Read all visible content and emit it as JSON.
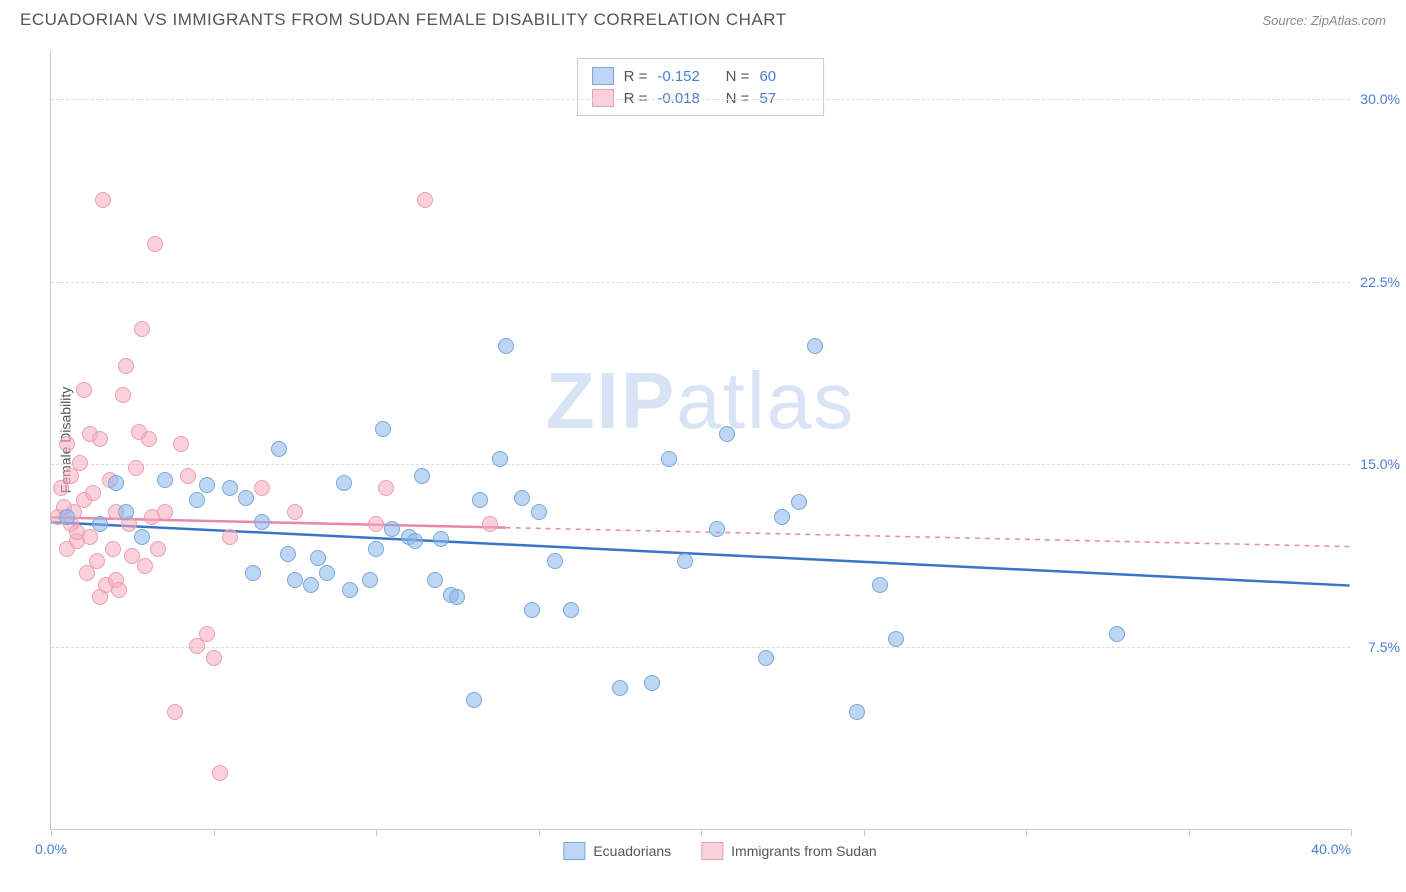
{
  "header": {
    "title": "ECUADORIAN VS IMMIGRANTS FROM SUDAN FEMALE DISABILITY CORRELATION CHART",
    "source": "Source: ZipAtlas.com"
  },
  "chart": {
    "type": "scatter",
    "ylabel": "Female Disability",
    "watermark_bold": "ZIP",
    "watermark_light": "atlas",
    "xlim": [
      0,
      40
    ],
    "ylim": [
      0,
      32
    ],
    "x_ticks": [
      0,
      5,
      10,
      15,
      20,
      25,
      30,
      35,
      40
    ],
    "x_tick_labels": {
      "0": "0.0%",
      "40": "40.0%"
    },
    "y_gridlines": [
      7.5,
      15.0,
      22.5,
      30.0
    ],
    "y_tick_labels": [
      "7.5%",
      "15.0%",
      "22.5%",
      "30.0%"
    ],
    "plot_bg": "#ffffff",
    "grid_color": "#dddddd",
    "axis_color": "#cccccc",
    "series": [
      {
        "name": "Ecuadorians",
        "fill": "rgba(135,180,235,0.55)",
        "stroke": "#7aa8d8",
        "line_color": "#3a73c8",
        "R": "-0.152",
        "N": "60",
        "trend": {
          "x1": 0,
          "y1": 12.6,
          "x2": 40,
          "y2": 10.0,
          "solid_until_x": 40
        },
        "points": [
          [
            0.5,
            12.8
          ],
          [
            1.5,
            12.5
          ],
          [
            2.0,
            14.2
          ],
          [
            2.3,
            13.0
          ],
          [
            2.8,
            12.0
          ],
          [
            3.5,
            14.3
          ],
          [
            4.5,
            13.5
          ],
          [
            4.8,
            14.1
          ],
          [
            5.5,
            14.0
          ],
          [
            6.0,
            13.6
          ],
          [
            6.2,
            10.5
          ],
          [
            6.5,
            12.6
          ],
          [
            7.0,
            15.6
          ],
          [
            7.3,
            11.3
          ],
          [
            7.5,
            10.2
          ],
          [
            8.0,
            10.0
          ],
          [
            8.2,
            11.1
          ],
          [
            8.5,
            10.5
          ],
          [
            9.0,
            14.2
          ],
          [
            9.2,
            9.8
          ],
          [
            9.8,
            10.2
          ],
          [
            10.0,
            11.5
          ],
          [
            10.2,
            16.4
          ],
          [
            10.5,
            12.3
          ],
          [
            11.0,
            12.0
          ],
          [
            11.2,
            11.8
          ],
          [
            11.4,
            14.5
          ],
          [
            11.8,
            10.2
          ],
          [
            12.0,
            11.9
          ],
          [
            12.3,
            9.6
          ],
          [
            12.5,
            9.5
          ],
          [
            13.0,
            5.3
          ],
          [
            13.2,
            13.5
          ],
          [
            13.8,
            15.2
          ],
          [
            14.0,
            19.8
          ],
          [
            14.5,
            13.6
          ],
          [
            14.8,
            9.0
          ],
          [
            15.0,
            13.0
          ],
          [
            15.5,
            11.0
          ],
          [
            16.0,
            9.0
          ],
          [
            17.5,
            5.8
          ],
          [
            18.5,
            6.0
          ],
          [
            19.0,
            15.2
          ],
          [
            19.5,
            11.0
          ],
          [
            20.5,
            12.3
          ],
          [
            20.8,
            16.2
          ],
          [
            22.0,
            7.0
          ],
          [
            22.5,
            12.8
          ],
          [
            23.0,
            13.4
          ],
          [
            23.5,
            19.8
          ],
          [
            24.8,
            4.8
          ],
          [
            25.5,
            10.0
          ],
          [
            26.0,
            7.8
          ],
          [
            32.8,
            8.0
          ]
        ]
      },
      {
        "name": "Immigrants from Sudan",
        "fill": "rgba(245,170,190,0.55)",
        "stroke": "#e8a0b5",
        "line_color": "#e888a8",
        "R": "-0.018",
        "N": "57",
        "trend": {
          "x1": 0,
          "y1": 12.8,
          "x2": 40,
          "y2": 11.6,
          "solid_until_x": 14
        },
        "points": [
          [
            0.2,
            12.8
          ],
          [
            0.3,
            14.0
          ],
          [
            0.4,
            13.2
          ],
          [
            0.5,
            15.8
          ],
          [
            0.5,
            11.5
          ],
          [
            0.6,
            14.5
          ],
          [
            0.6,
            12.5
          ],
          [
            0.7,
            13.0
          ],
          [
            0.8,
            11.8
          ],
          [
            0.8,
            12.2
          ],
          [
            0.9,
            15.0
          ],
          [
            1.0,
            13.5
          ],
          [
            1.0,
            18.0
          ],
          [
            1.1,
            10.5
          ],
          [
            1.2,
            16.2
          ],
          [
            1.2,
            12.0
          ],
          [
            1.3,
            13.8
          ],
          [
            1.4,
            11.0
          ],
          [
            1.5,
            9.5
          ],
          [
            1.5,
            16.0
          ],
          [
            1.6,
            25.8
          ],
          [
            1.7,
            10.0
          ],
          [
            1.8,
            14.3
          ],
          [
            1.9,
            11.5
          ],
          [
            2.0,
            10.2
          ],
          [
            2.0,
            13.0
          ],
          [
            2.1,
            9.8
          ],
          [
            2.2,
            17.8
          ],
          [
            2.3,
            19.0
          ],
          [
            2.4,
            12.5
          ],
          [
            2.5,
            11.2
          ],
          [
            2.6,
            14.8
          ],
          [
            2.7,
            16.3
          ],
          [
            2.8,
            20.5
          ],
          [
            2.9,
            10.8
          ],
          [
            3.0,
            16.0
          ],
          [
            3.1,
            12.8
          ],
          [
            3.2,
            24.0
          ],
          [
            3.3,
            11.5
          ],
          [
            3.5,
            13.0
          ],
          [
            3.8,
            4.8
          ],
          [
            4.0,
            15.8
          ],
          [
            4.2,
            14.5
          ],
          [
            4.5,
            7.5
          ],
          [
            4.8,
            8.0
          ],
          [
            5.0,
            7.0
          ],
          [
            5.2,
            2.3
          ],
          [
            5.5,
            12.0
          ],
          [
            6.5,
            14.0
          ],
          [
            7.5,
            13.0
          ],
          [
            10.0,
            12.5
          ],
          [
            10.3,
            14.0
          ],
          [
            11.5,
            25.8
          ],
          [
            13.5,
            12.5
          ]
        ]
      }
    ]
  }
}
